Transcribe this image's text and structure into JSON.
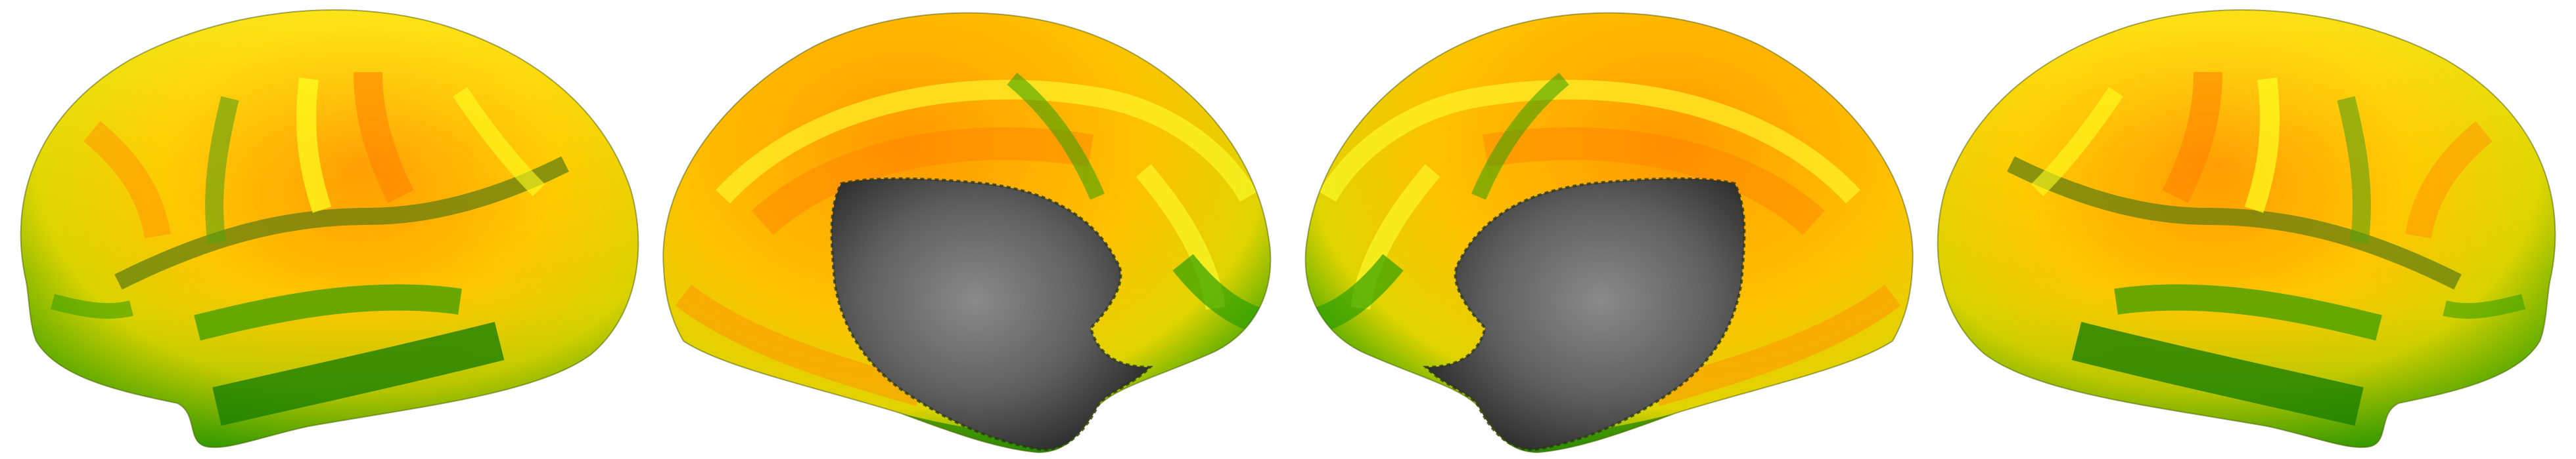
{
  "colors": {
    "background": "#ffffff",
    "high": "#ff7a00",
    "mid": "#ffd000",
    "upper": "#ffff00",
    "low": "#2ea800",
    "lowest": "#0f6e00",
    "medial_wall": "#5a5a5a"
  },
  "views": [
    {
      "name": "left-lateral",
      "hemisphere": "left",
      "view": "lateral"
    },
    {
      "name": "left-medial",
      "hemisphere": "left",
      "view": "medial"
    },
    {
      "name": "right-medial",
      "hemisphere": "right",
      "view": "medial"
    },
    {
      "name": "right-lateral",
      "hemisphere": "right",
      "view": "lateral"
    }
  ]
}
